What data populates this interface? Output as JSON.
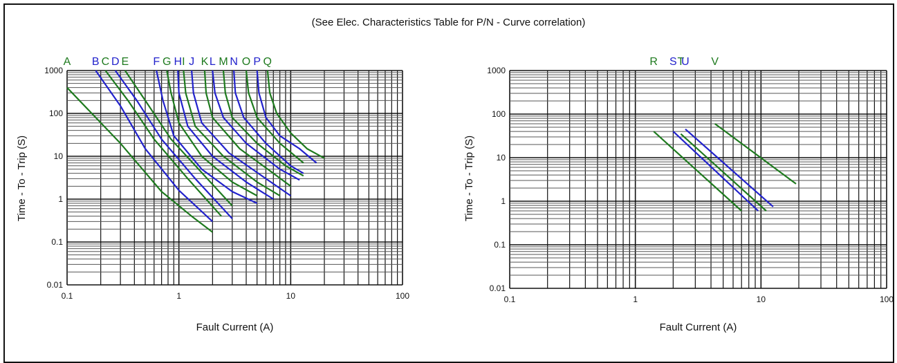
{
  "caption": "(See Elec. Characteristics Table for P/N - Curve correlation)",
  "colors": {
    "green": "#1e7a1e",
    "blue": "#2222cc",
    "grid": "#111111"
  },
  "chart_data": [
    {
      "type": "line",
      "title": "",
      "xlabel": "Fault Current (A)",
      "ylabel": "Time - To - Trip (S)",
      "xscale": "log",
      "yscale": "log",
      "xlim": [
        0.1,
        100
      ],
      "ylim": [
        0.01,
        1000
      ],
      "xticks": [
        "0.1",
        "1",
        "10",
        "100"
      ],
      "yticks": [
        "0.01",
        "0.1",
        "1",
        "10",
        "100",
        "1000"
      ],
      "grid": true,
      "series": [
        {
          "name": "A",
          "color": "green",
          "points": [
            [
              0.1,
              400
            ],
            [
              0.3,
              20
            ],
            [
              0.7,
              1.5
            ],
            [
              1.3,
              0.4
            ],
            [
              2,
              0.17
            ]
          ]
        },
        {
          "name": "B",
          "color": "blue",
          "points": [
            [
              0.18,
              1000
            ],
            [
              0.3,
              150
            ],
            [
              0.5,
              15
            ],
            [
              1,
              1.6
            ],
            [
              2,
              0.3
            ]
          ]
        },
        {
          "name": "C",
          "color": "green",
          "points": [
            [
              0.22,
              1000
            ],
            [
              0.35,
              200
            ],
            [
              0.6,
              25
            ],
            [
              1.2,
              3
            ],
            [
              2.4,
              0.4
            ]
          ]
        },
        {
          "name": "D",
          "color": "blue",
          "points": [
            [
              0.27,
              1000
            ],
            [
              0.42,
              200
            ],
            [
              0.7,
              25
            ],
            [
              1.4,
              3
            ],
            [
              3,
              0.35
            ]
          ]
        },
        {
          "name": "E",
          "color": "green",
          "points": [
            [
              0.33,
              1000
            ],
            [
              0.5,
              200
            ],
            [
              0.85,
              25
            ],
            [
              1.7,
              3.5
            ],
            [
              3,
              0.7
            ]
          ]
        },
        {
          "name": "F",
          "color": "blue",
          "points": [
            [
              0.63,
              1000
            ],
            [
              0.72,
              200
            ],
            [
              0.9,
              30
            ],
            [
              1.6,
              5
            ],
            [
              3,
              1.5
            ],
            [
              5,
              0.8
            ]
          ]
        },
        {
          "name": "G",
          "color": "green",
          "points": [
            [
              0.78,
              1000
            ],
            [
              0.85,
              300
            ],
            [
              1,
              60
            ],
            [
              1.6,
              10
            ],
            [
              3,
              2.5
            ],
            [
              5,
              1.2
            ]
          ]
        },
        {
          "name": "H",
          "color": "blue",
          "points": [
            [
              0.98,
              1000
            ],
            [
              1,
              300
            ],
            [
              1.2,
              50
            ],
            [
              2,
              10
            ],
            [
              4,
              2.5
            ],
            [
              7,
              1
            ]
          ]
        },
        {
          "name": "I",
          "color": "green",
          "points": [
            [
              1.1,
              1000
            ],
            [
              1.15,
              300
            ],
            [
              1.4,
              50
            ],
            [
              2.5,
              10
            ],
            [
              5,
              2.5
            ],
            [
              8,
              1.2
            ]
          ]
        },
        {
          "name": "J",
          "color": "blue",
          "points": [
            [
              1.3,
              1000
            ],
            [
              1.35,
              300
            ],
            [
              1.6,
              60
            ],
            [
              2.8,
              12
            ],
            [
              6,
              3
            ],
            [
              10,
              1.2
            ]
          ]
        },
        {
          "name": "K",
          "color": "green",
          "points": [
            [
              1.7,
              1000
            ],
            [
              1.75,
              300
            ],
            [
              2,
              80
            ],
            [
              3.5,
              15
            ],
            [
              7,
              4
            ],
            [
              10,
              2
            ]
          ]
        },
        {
          "name": "L",
          "color": "blue",
          "points": [
            [
              2,
              1000
            ],
            [
              2.1,
              300
            ],
            [
              2.5,
              80
            ],
            [
              4,
              20
            ],
            [
              8,
              5
            ],
            [
              12,
              2.8
            ]
          ]
        },
        {
          "name": "M",
          "color": "green",
          "points": [
            [
              2.5,
              1000
            ],
            [
              2.6,
              300
            ],
            [
              3,
              80
            ],
            [
              5,
              20
            ],
            [
              9,
              6
            ],
            [
              13,
              3.5
            ]
          ]
        },
        {
          "name": "N",
          "color": "blue",
          "points": [
            [
              3.1,
              1000
            ],
            [
              3.2,
              300
            ],
            [
              3.8,
              80
            ],
            [
              6,
              20
            ],
            [
              10,
              6
            ],
            [
              13,
              4
            ]
          ]
        },
        {
          "name": "O",
          "color": "green",
          "points": [
            [
              4,
              1000
            ],
            [
              4.2,
              300
            ],
            [
              5,
              80
            ],
            [
              8,
              20
            ],
            [
              13,
              7
            ]
          ]
        },
        {
          "name": "P",
          "color": "blue",
          "points": [
            [
              5,
              1000
            ],
            [
              5.2,
              300
            ],
            [
              6,
              80
            ],
            [
              8,
              30
            ],
            [
              12,
              15
            ],
            [
              17,
              7
            ]
          ]
        },
        {
          "name": "Q",
          "color": "green",
          "points": [
            [
              6.2,
              1000
            ],
            [
              6.5,
              300
            ],
            [
              7.5,
              100
            ],
            [
              10,
              35
            ],
            [
              14,
              15
            ],
            [
              20,
              9
            ]
          ]
        }
      ]
    },
    {
      "type": "line",
      "title": "",
      "xlabel": "Fault Current (A)",
      "ylabel": "Time - To - Trip (S)",
      "xscale": "log",
      "yscale": "log",
      "xlim": [
        0.1,
        100
      ],
      "ylim": [
        0.01,
        1000
      ],
      "xticks": [
        "0.1",
        "1",
        "10",
        "100"
      ],
      "yticks": [
        "0.01",
        "0.1",
        "1",
        "10",
        "100",
        "1000"
      ],
      "grid": true,
      "series": [
        {
          "name": "R",
          "color": "green",
          "points": [
            [
              1.4,
              40
            ],
            [
              7,
              0.6
            ]
          ]
        },
        {
          "name": "S",
          "color": "blue",
          "points": [
            [
              2,
              40
            ],
            [
              9.5,
              0.6
            ]
          ]
        },
        {
          "name": "T",
          "color": "green",
          "points": [
            [
              2.3,
              35
            ],
            [
              11,
              0.6
            ]
          ]
        },
        {
          "name": "U",
          "color": "blue",
          "points": [
            [
              2.5,
              45
            ],
            [
              12.5,
              0.75
            ]
          ]
        },
        {
          "name": "V",
          "color": "green",
          "points": [
            [
              4.3,
              60
            ],
            [
              19,
              2.5
            ]
          ]
        }
      ]
    }
  ]
}
